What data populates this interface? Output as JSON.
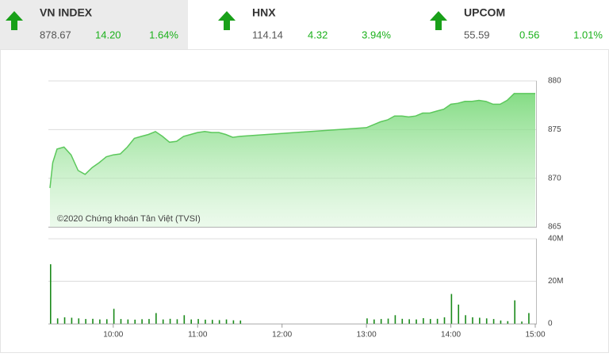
{
  "indices": [
    {
      "name": "VN INDEX",
      "value": "878.67",
      "change": "14.20",
      "percent": "1.64%"
    },
    {
      "name": "HNX",
      "value": "114.14",
      "change": "4.32",
      "percent": "3.94%"
    },
    {
      "name": "UPCOM",
      "value": "55.59",
      "change": "0.56",
      "percent": "1.01%"
    }
  ],
  "chart_data": [
    {
      "type": "area",
      "annotation": "©2020 Chứng khoán Tân Việt (TVSI)",
      "color": "#5cc85c",
      "x": [
        "09:15",
        "09:17",
        "09:20",
        "09:25",
        "09:30",
        "09:35",
        "09:40",
        "09:45",
        "09:50",
        "09:55",
        "10:00",
        "10:05",
        "10:10",
        "10:15",
        "10:20",
        "10:25",
        "10:30",
        "10:35",
        "10:40",
        "10:45",
        "10:50",
        "10:55",
        "11:00",
        "11:05",
        "11:10",
        "11:15",
        "11:20",
        "11:25",
        "11:30",
        "13:00",
        "13:05",
        "13:10",
        "13:15",
        "13:20",
        "13:25",
        "13:30",
        "13:35",
        "13:40",
        "13:45",
        "13:50",
        "13:55",
        "14:00",
        "14:05",
        "14:10",
        "14:15",
        "14:20",
        "14:25",
        "14:30",
        "14:35",
        "14:40",
        "14:45",
        "14:50",
        "15:00"
      ],
      "values": [
        869.0,
        871.6,
        873.0,
        873.2,
        872.4,
        870.8,
        870.4,
        871.1,
        871.6,
        872.2,
        872.4,
        872.5,
        873.2,
        874.1,
        874.3,
        874.5,
        874.8,
        874.3,
        873.7,
        873.8,
        874.3,
        874.5,
        874.7,
        874.8,
        874.7,
        874.7,
        874.5,
        874.2,
        874.3,
        875.2,
        875.5,
        875.8,
        876.0,
        876.4,
        876.4,
        876.3,
        876.4,
        876.7,
        876.7,
        876.9,
        877.1,
        877.6,
        877.7,
        877.9,
        877.9,
        878.0,
        877.9,
        877.6,
        877.6,
        878.0,
        878.7,
        878.7,
        878.7
      ],
      "xlim": [
        "09:15",
        "15:00"
      ],
      "ylim": [
        865,
        880
      ],
      "yticks": [
        865,
        870,
        875,
        880
      ],
      "grid": true
    },
    {
      "type": "bar",
      "color": "#1a8a1a",
      "x": [
        "09:15",
        "09:20",
        "09:25",
        "09:30",
        "09:35",
        "09:40",
        "09:45",
        "09:50",
        "09:55",
        "10:00",
        "10:05",
        "10:10",
        "10:15",
        "10:20",
        "10:25",
        "10:30",
        "10:35",
        "10:40",
        "10:45",
        "10:50",
        "10:55",
        "11:00",
        "11:05",
        "11:10",
        "11:15",
        "11:20",
        "11:25",
        "11:30",
        "13:00",
        "13:05",
        "13:10",
        "13:15",
        "13:20",
        "13:25",
        "13:30",
        "13:35",
        "13:40",
        "13:45",
        "13:50",
        "13:55",
        "14:00",
        "14:05",
        "14:10",
        "14:15",
        "14:20",
        "14:25",
        "14:30",
        "14:35",
        "14:40",
        "14:45",
        "14:50",
        "14:55"
      ],
      "values": [
        28000000,
        2500000,
        3000000,
        2800000,
        2500000,
        2200000,
        2300000,
        2000000,
        2100000,
        7000000,
        2200000,
        2000000,
        1900000,
        2100000,
        2200000,
        5000000,
        2000000,
        2300000,
        2100000,
        4000000,
        2000000,
        2200000,
        1900000,
        1800000,
        1700000,
        2000000,
        1600000,
        1500000,
        2500000,
        2000000,
        2200000,
        2400000,
        4000000,
        2300000,
        2100000,
        2000000,
        2600000,
        2200000,
        2300000,
        3000000,
        14000000,
        9000000,
        4000000,
        3000000,
        2800000,
        2500000,
        2200000,
        1500000,
        1200000,
        11000000,
        1000000,
        5000000
      ],
      "xlim": [
        "09:15",
        "15:00"
      ],
      "xticks": [
        "10:00",
        "11:00",
        "12:00",
        "13:00",
        "14:00",
        "15:00"
      ],
      "ylim": [
        0,
        40000000
      ],
      "yticks": [
        0,
        {
          "value": 20000000,
          "label": "20M"
        },
        {
          "value": 40000000,
          "label": "40M"
        }
      ],
      "grid": true
    }
  ]
}
